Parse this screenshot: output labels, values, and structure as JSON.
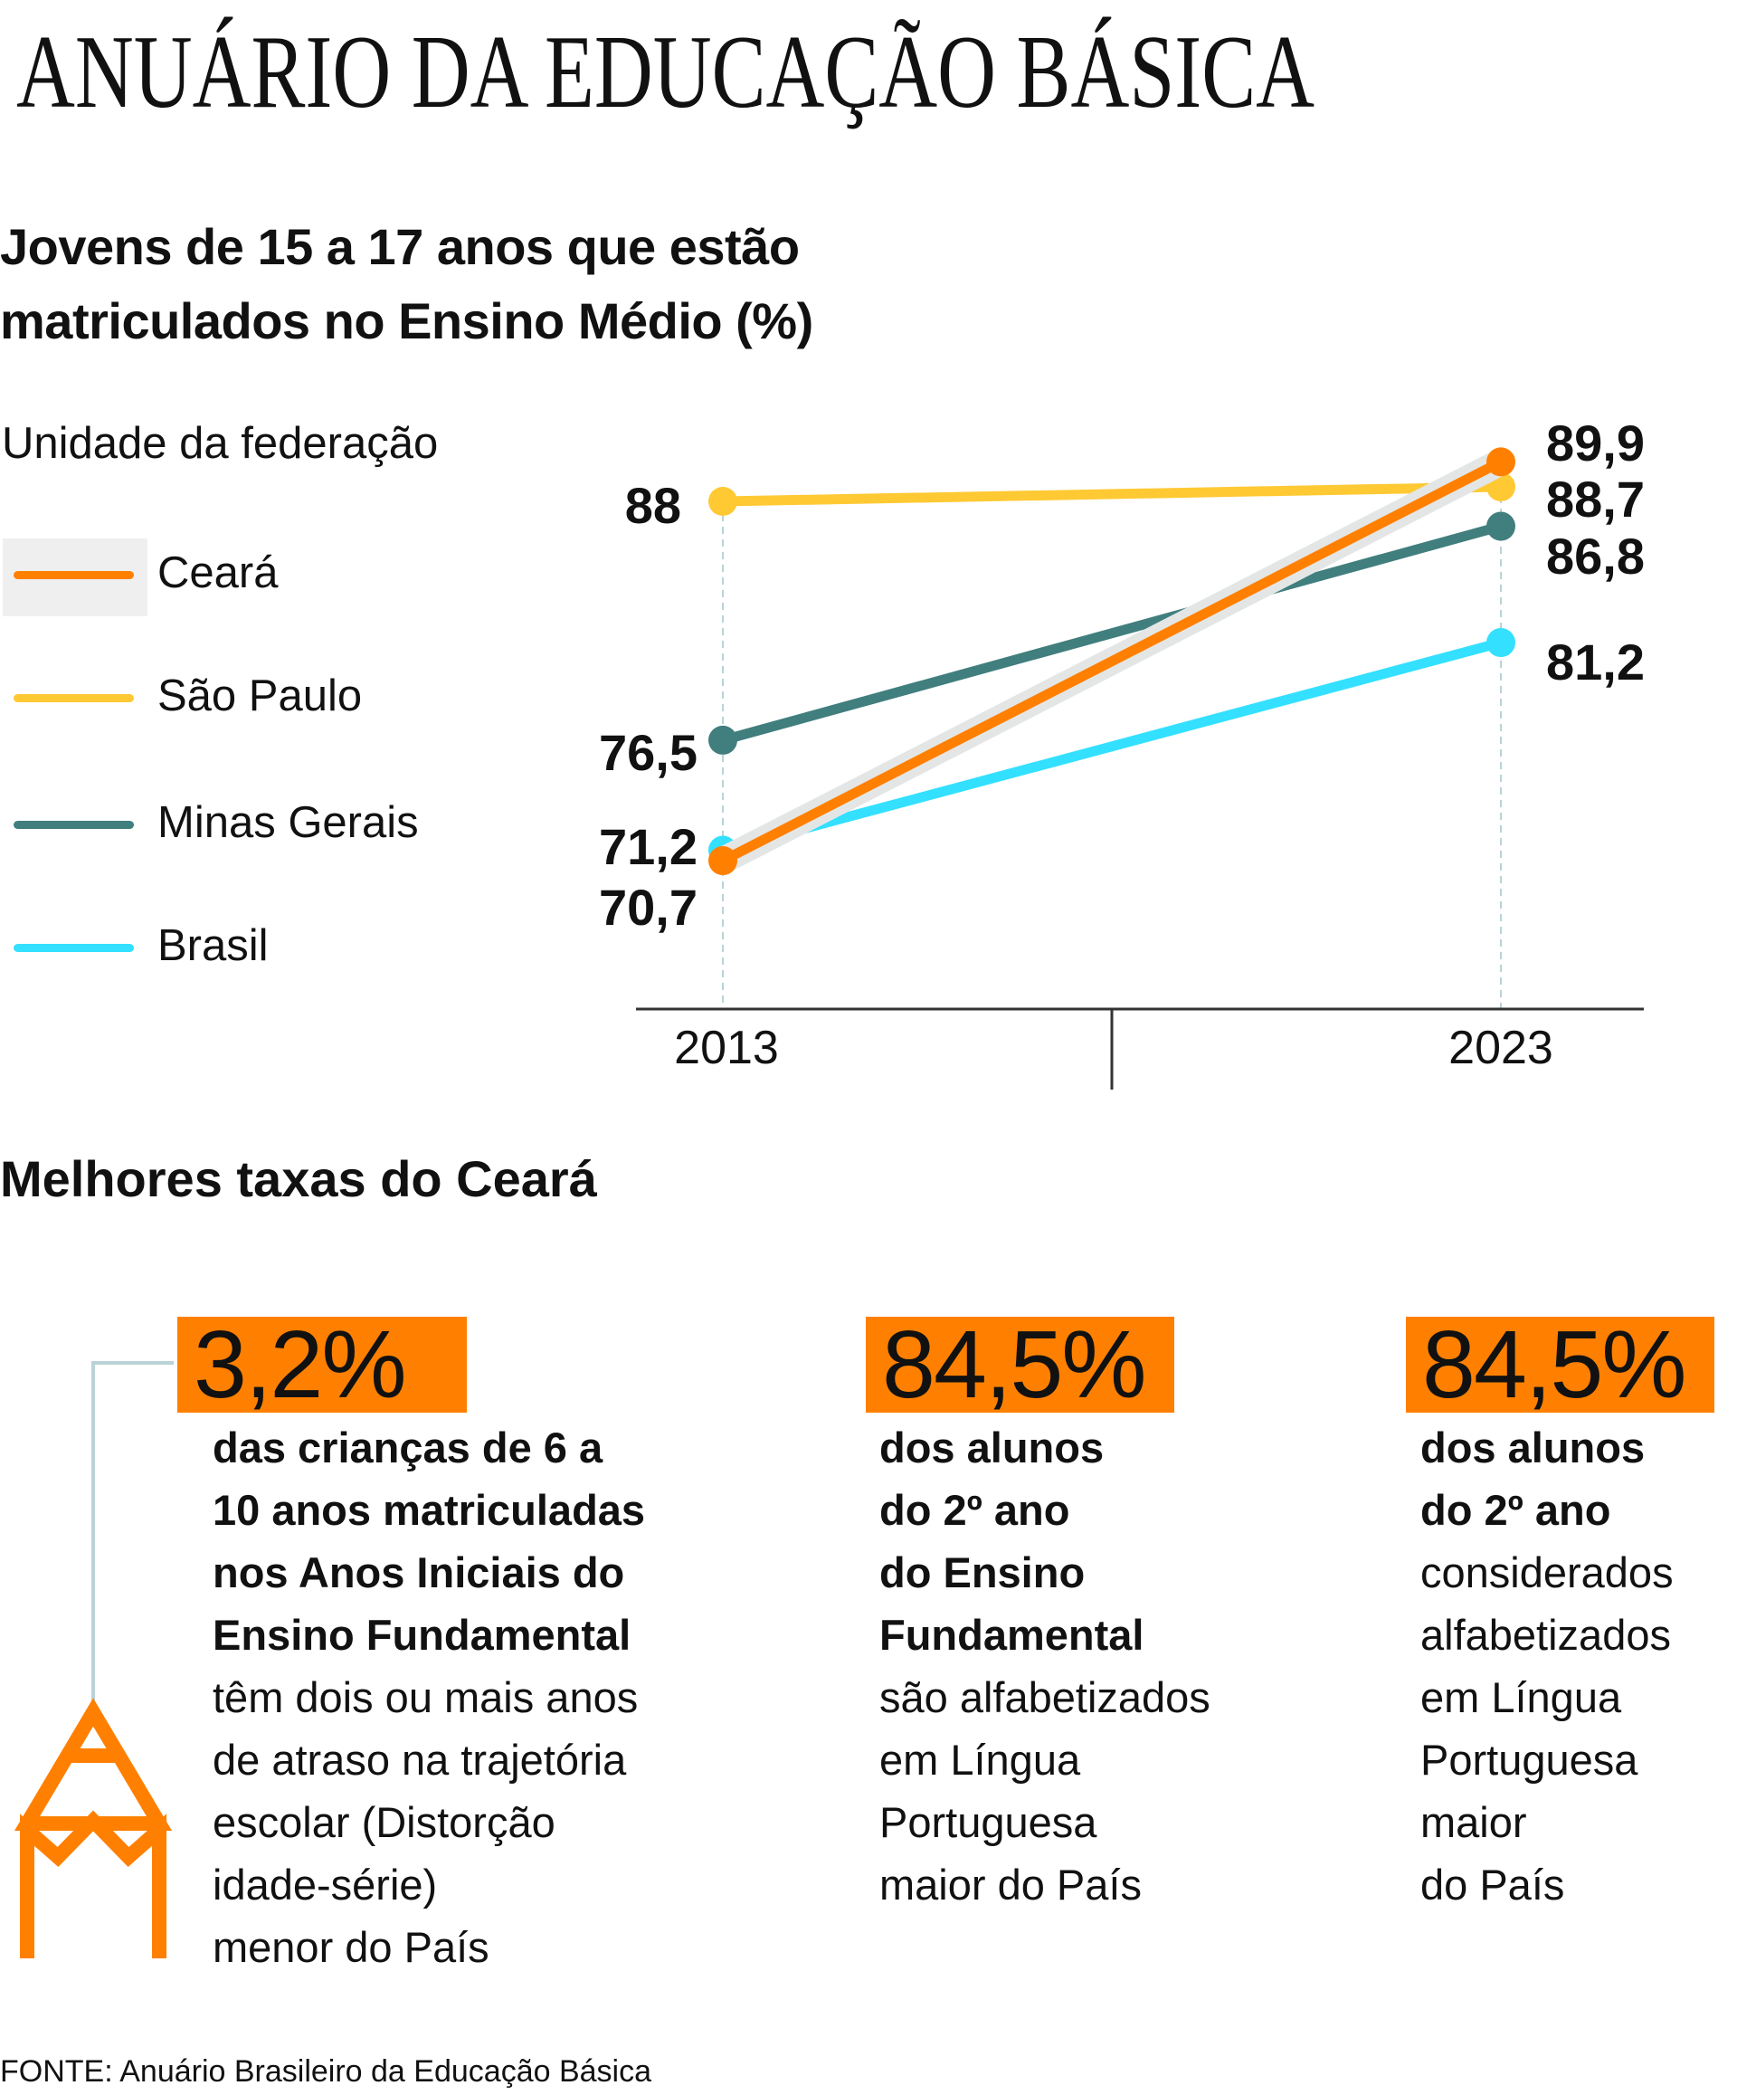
{
  "header": {
    "title": "ANUÁRIO DA EDUCAÇÃO BÁSICA"
  },
  "subtitle": {
    "line1": "Jovens de 15 a 17 anos que estão",
    "line2": "matriculados no Ensino Médio (%)"
  },
  "legend": {
    "title": "Unidade da federação",
    "items": [
      {
        "label": "Ceará",
        "color": "#ff8000",
        "highlighted": true
      },
      {
        "label": "São Paulo",
        "color": "#ffc933"
      },
      {
        "label": "Minas Gerais",
        "color": "#417e7e"
      },
      {
        "label": "Brasil",
        "color": "#33e0ff"
      }
    ]
  },
  "chart_data": {
    "type": "line",
    "title": "Jovens de 15 a 17 anos que estão matriculados no Ensino Médio (%)",
    "x": [
      "2013",
      "2023"
    ],
    "series": [
      {
        "name": "São Paulo",
        "values": [
          88,
          88.7
        ],
        "labels": [
          "88",
          "88,7"
        ],
        "color": "#ffc933"
      },
      {
        "name": "Minas Gerais",
        "values": [
          76.5,
          86.8
        ],
        "labels": [
          "76,5",
          "86,8"
        ],
        "color": "#417e7e"
      },
      {
        "name": "Brasil",
        "values": [
          71.2,
          81.2
        ],
        "labels": [
          "71,2",
          "81,2"
        ],
        "color": "#33e0ff"
      },
      {
        "name": "Ceará",
        "values": [
          70.7,
          89.9
        ],
        "labels": [
          "70,7",
          "89,9"
        ],
        "color": "#ff8000",
        "highlighted": true
      }
    ],
    "legend_placement": "left",
    "grid": false
  },
  "section2": {
    "title": "Melhores taxas do Ceará"
  },
  "stats": [
    {
      "value": "3,2%",
      "bold_lines": [
        "das crianças de 6 a",
        "10 anos matriculadas",
        "nos Anos Iniciais do",
        "Ensino Fundamental"
      ],
      "regular_lines": [
        "têm dois ou mais anos",
        "de atraso na trajetória",
        "escolar (Distorção",
        "idade-série)",
        "menor do País"
      ]
    },
    {
      "value": "84,5%",
      "bold_lines": [
        "dos alunos",
        "do 2º ano",
        "do Ensino",
        "Fundamental"
      ],
      "regular_lines": [
        "são alfabetizados",
        "em Língua",
        "Portuguesa",
        "maior do País"
      ]
    },
    {
      "value": "84,5%",
      "bold_lines": [
        "dos alunos",
        "do 2º ano"
      ],
      "regular_lines": [
        "considerados",
        "alfabetizados",
        "em Língua",
        "Portuguesa",
        "maior",
        "do País"
      ]
    }
  ],
  "icons": {
    "pencil": "pencil-icon"
  },
  "colors": {
    "accent": "#ff8000",
    "connector": "#b9d3d6"
  },
  "source": "FONTE: Anuário Brasileiro da Educação Básica"
}
